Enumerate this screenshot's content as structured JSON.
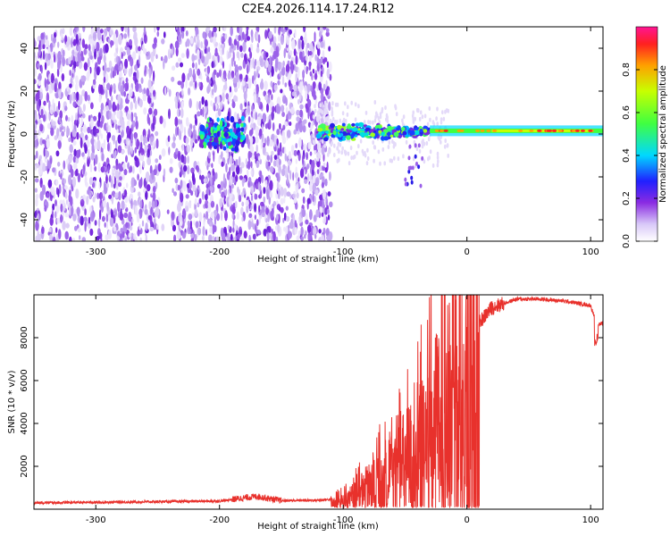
{
  "title": "C2E4.2026.114.17.24.R12",
  "chart_data": [
    {
      "type": "heatmap",
      "xlabel": "Height of straight line (km)",
      "ylabel": "Frequency (Hz)",
      "xlim": [
        -350,
        110
      ],
      "ylim": [
        -50,
        50
      ],
      "xticks": [
        -300,
        -200,
        -100,
        0,
        100
      ],
      "yticks": [
        -40,
        -20,
        0,
        20,
        40
      ],
      "colorbar": {
        "label": "Normalized spectral amplitude",
        "range": [
          0,
          1
        ],
        "ticks": [
          "0.0",
          "0.2",
          "0.4",
          "0.6",
          "0.8"
        ],
        "tick_values": [
          0.0,
          0.2,
          0.4,
          0.6,
          0.8
        ]
      },
      "regions": [
        {
          "name": "broadband noise",
          "x": [
            -350,
            -120
          ],
          "freq": [
            -50,
            50
          ],
          "amplitude": 0.1
        },
        {
          "name": "cluster",
          "x": [
            -215,
            -180
          ],
          "freq": [
            -8,
            8
          ],
          "amplitude": 0.35
        },
        {
          "name": "transition",
          "x": [
            -120,
            -30
          ],
          "freq": [
            -5,
            5
          ],
          "amplitude": 0.45
        },
        {
          "name": "carrier",
          "x": [
            -30,
            110
          ],
          "freq": [
            1,
            2
          ],
          "amplitude": 0.85
        }
      ]
    },
    {
      "type": "line",
      "xlabel": "Height of straight line (km)",
      "ylabel": "SNR (10 * v/v)",
      "xlim": [
        -350,
        110
      ],
      "ylim": [
        0,
        10000
      ],
      "xticks": [
        -300,
        -200,
        -100,
        0,
        100
      ],
      "yticks": [
        2000,
        4000,
        6000,
        8000
      ],
      "series": [
        {
          "name": "SNR",
          "color": "#e8312c",
          "x": [
            -350,
            -300,
            -250,
            -200,
            -170,
            -150,
            -120,
            -100,
            -80,
            -60,
            -40,
            -20,
            0,
            20,
            40,
            60,
            80,
            100,
            105,
            110
          ],
          "y": [
            300,
            320,
            350,
            380,
            600,
            400,
            420,
            500,
            1500,
            2500,
            4200,
            6500,
            8000,
            9400,
            9800,
            9800,
            9700,
            9500,
            8600,
            8700
          ]
        }
      ]
    }
  ]
}
